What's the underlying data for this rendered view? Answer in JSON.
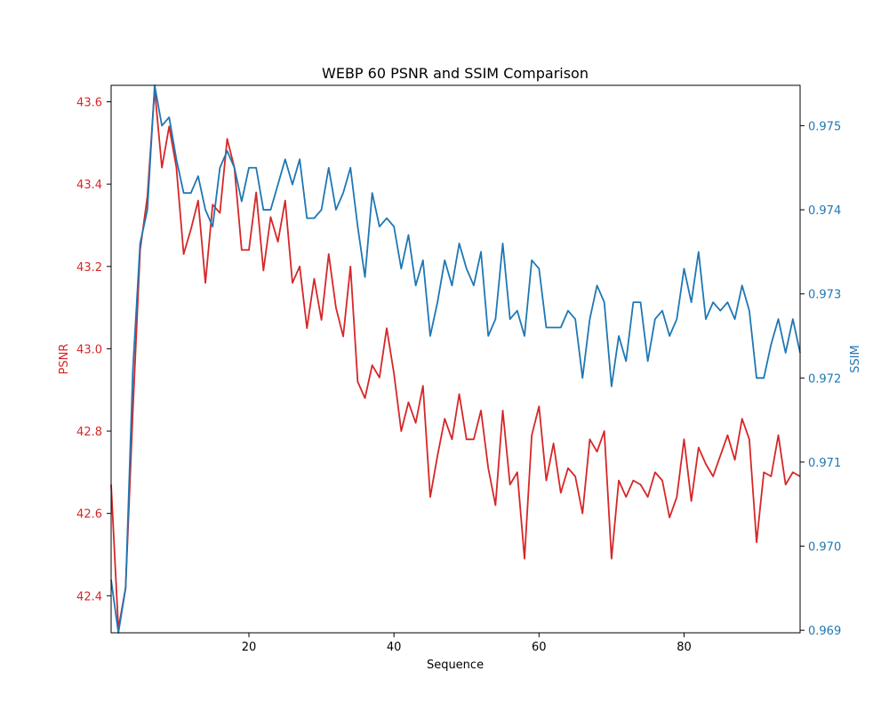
{
  "chart_data": {
    "type": "line",
    "title": "WEBP 60 PSNR and SSIM Comparison",
    "xlabel": "Sequence",
    "ylabel_left": "PSNR",
    "ylabel_right": "SSIM",
    "xlim": [
      1,
      96
    ],
    "ylim_left": [
      42.31,
      43.64
    ],
    "ylim_right": [
      0.96897,
      0.97548
    ],
    "grid": false,
    "x_ticks": [
      20,
      40,
      60,
      80
    ],
    "x_tick_labels": [
      "20",
      "40",
      "60",
      "80"
    ],
    "y_left_ticks": [
      42.4,
      42.6,
      42.8,
      43.0,
      43.2,
      43.4,
      43.6
    ],
    "y_left_tick_labels": [
      "42.4",
      "42.6",
      "42.8",
      "43.0",
      "43.2",
      "43.4",
      "43.6"
    ],
    "y_right_ticks": [
      0.969,
      0.97,
      0.971,
      0.972,
      0.973,
      0.974,
      0.975
    ],
    "y_right_tick_labels": [
      "0.969",
      "0.970",
      "0.971",
      "0.972",
      "0.973",
      "0.974",
      "0.975"
    ],
    "colors": {
      "psnr": "#d62728",
      "ssim": "#1f77b4"
    },
    "x": [
      1,
      2,
      3,
      4,
      5,
      6,
      7,
      8,
      9,
      10,
      11,
      12,
      13,
      14,
      15,
      16,
      17,
      18,
      19,
      20,
      21,
      22,
      23,
      24,
      25,
      26,
      27,
      28,
      29,
      30,
      31,
      32,
      33,
      34,
      35,
      36,
      37,
      38,
      39,
      40,
      41,
      42,
      43,
      44,
      45,
      46,
      47,
      48,
      49,
      50,
      51,
      52,
      53,
      54,
      55,
      56,
      57,
      58,
      59,
      60,
      61,
      62,
      63,
      64,
      65,
      66,
      67,
      68,
      69,
      70,
      71,
      72,
      73,
      74,
      75,
      76,
      77,
      78,
      79,
      80,
      81,
      82,
      83,
      84,
      85,
      86,
      87,
      88,
      89,
      90,
      91,
      92,
      93,
      94,
      95,
      96
    ],
    "series": [
      {
        "axis": "left",
        "values": [
          42.67,
          42.32,
          42.42,
          42.85,
          43.24,
          43.37,
          43.63,
          43.44,
          43.54,
          43.44,
          43.23,
          43.29,
          43.36,
          43.16,
          43.35,
          43.33,
          43.51,
          43.44,
          43.24,
          43.24,
          43.38,
          43.19,
          43.32,
          43.26,
          43.36,
          43.16,
          43.2,
          43.05,
          43.17,
          43.07,
          43.23,
          43.1,
          43.03,
          43.2,
          42.92,
          42.88,
          42.96,
          42.93,
          43.05,
          42.94,
          42.8,
          42.87,
          42.82,
          42.91,
          42.64,
          42.74,
          42.83,
          42.78,
          42.89,
          42.78,
          42.78,
          42.85,
          42.71,
          42.62,
          42.85,
          42.67,
          42.7,
          42.49,
          42.79,
          42.86,
          42.68,
          42.77,
          42.65,
          42.71,
          42.69,
          42.6,
          42.78,
          42.75,
          42.8,
          42.49,
          42.68,
          42.64,
          42.68,
          42.67,
          42.64,
          42.7,
          42.68,
          42.59,
          42.64,
          42.78,
          42.63,
          42.76,
          42.72,
          42.69,
          42.74,
          42.79,
          42.73,
          42.83,
          42.78,
          42.53,
          42.7,
          42.69,
          42.79,
          42.67,
          42.7,
          42.69
        ]
      },
      {
        "axis": "right",
        "values": [
          0.9696,
          0.96897,
          0.9695,
          0.9721,
          0.9736,
          0.974,
          0.97548,
          0.975,
          0.9751,
          0.9746,
          0.9742,
          0.9742,
          0.9744,
          0.974,
          0.9738,
          0.9745,
          0.9747,
          0.9745,
          0.9741,
          0.9745,
          0.9745,
          0.974,
          0.974,
          0.9743,
          0.9746,
          0.9743,
          0.9746,
          0.9739,
          0.9739,
          0.974,
          0.9745,
          0.974,
          0.9742,
          0.9745,
          0.9738,
          0.9732,
          0.9742,
          0.9738,
          0.9739,
          0.9738,
          0.9733,
          0.9737,
          0.9731,
          0.9734,
          0.9725,
          0.9729,
          0.9734,
          0.9731,
          0.9736,
          0.9733,
          0.9731,
          0.9735,
          0.9725,
          0.9727,
          0.9736,
          0.9727,
          0.9728,
          0.9725,
          0.9734,
          0.9733,
          0.9726,
          0.9726,
          0.9726,
          0.9728,
          0.9727,
          0.972,
          0.9727,
          0.9731,
          0.9729,
          0.9719,
          0.9725,
          0.9722,
          0.9729,
          0.9729,
          0.9722,
          0.9727,
          0.9728,
          0.9725,
          0.9727,
          0.9733,
          0.9729,
          0.9735,
          0.9727,
          0.9729,
          0.9728,
          0.9729,
          0.9727,
          0.9731,
          0.9728,
          0.972,
          0.972,
          0.9724,
          0.9727,
          0.9723,
          0.9727,
          0.9723
        ]
      }
    ]
  }
}
